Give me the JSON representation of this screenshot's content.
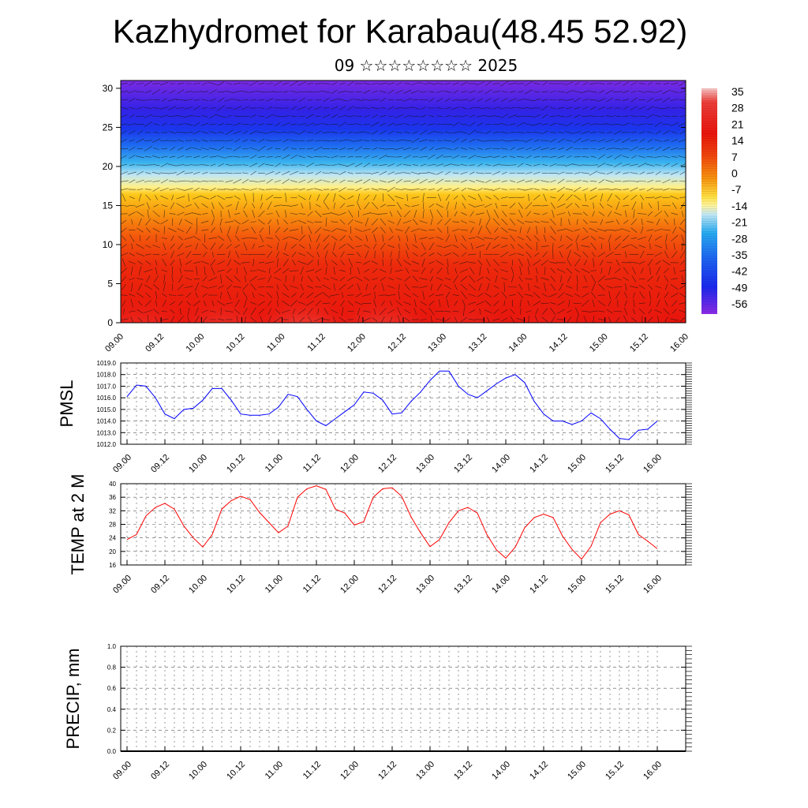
{
  "title": "Kazhydromet for Karabau(48.45 52.92)",
  "subtitle": "09 ☆☆☆☆☆☆☆☆ 2025",
  "colorbar": {
    "labels": [
      "35",
      "28",
      "21",
      "14",
      "7",
      "0",
      "-7",
      "-14",
      "-21",
      "-28",
      "-35",
      "-42",
      "-49",
      "-56"
    ]
  },
  "chart_data": [
    {
      "type": "heatmap",
      "title": "",
      "description_kind": "vertical cross-section temperature with wind vectors",
      "y_ticks": [
        0,
        5,
        10,
        15,
        20,
        25,
        30
      ],
      "ylim": [
        0,
        31
      ],
      "x_ticks": [
        "09.00",
        "09.12",
        "10.00",
        "10.12",
        "11.00",
        "11.12",
        "12.00",
        "12.12",
        "13.00",
        "13.12",
        "14.00",
        "14.12",
        "15.00",
        "15.12",
        "16.00"
      ],
      "colors": {
        "hot_spot": "#f7b0b0",
        "red": "#e8140c",
        "orange": "#f57a0c",
        "yellow": "#ffd21a",
        "light_blue": "#a8dcf2",
        "blue": "#1a55f0",
        "violet": "#7a28e6"
      }
    },
    {
      "type": "line",
      "ylabel": "PMSL",
      "ylim": [
        1012.0,
        1019.0
      ],
      "y_ticks": [
        "1012.0",
        "1013.0",
        "1014.0",
        "1015.0",
        "1016.0",
        "1017.0",
        "1018.0",
        "1019.0"
      ],
      "x_ticks": [
        "09.00",
        "09.12",
        "10.00",
        "10.12",
        "11.00",
        "11.12",
        "12.00",
        "12.12",
        "13.00",
        "13.12",
        "14.00",
        "14.12",
        "15.00",
        "15.12",
        "16.00"
      ],
      "color": "#0000ff",
      "values": [
        1016.1,
        1017.1,
        1017.0,
        1016.0,
        1014.6,
        1014.2,
        1015.0,
        1015.1,
        1015.8,
        1016.8,
        1016.8,
        1015.8,
        1014.6,
        1014.5,
        1014.5,
        1014.6,
        1015.2,
        1016.3,
        1016.1,
        1015.0,
        1014.0,
        1013.6,
        1014.2,
        1014.8,
        1015.4,
        1016.5,
        1016.4,
        1015.8,
        1014.6,
        1014.7,
        1015.7,
        1016.5,
        1017.5,
        1018.3,
        1018.3,
        1017.0,
        1016.3,
        1016.0,
        1016.6,
        1017.2,
        1017.7,
        1018.0,
        1017.3,
        1015.7,
        1014.6,
        1014.0,
        1014.0,
        1013.7,
        1014.0,
        1014.7,
        1014.2,
        1013.3,
        1012.5,
        1012.4,
        1013.2,
        1013.3,
        1014.0
      ]
    },
    {
      "type": "line",
      "ylabel": "TEMP at 2 M",
      "ylim": [
        16,
        40
      ],
      "y_ticks": [
        "16",
        "20",
        "24",
        "28",
        "32",
        "36",
        "40"
      ],
      "x_ticks": [
        "09.00",
        "09.12",
        "10.00",
        "10.12",
        "11.00",
        "11.12",
        "12.00",
        "12.12",
        "13.00",
        "13.12",
        "14.00",
        "14.12",
        "15.00",
        "15.12",
        "16.00"
      ],
      "color": "#ff0000",
      "values": [
        23.5,
        25,
        30.5,
        33,
        34.2,
        32.5,
        27.5,
        24,
        21.3,
        25,
        32.5,
        35,
        36.3,
        35.3,
        31.5,
        28.5,
        25.5,
        27.5,
        36,
        38.5,
        39.4,
        38.3,
        32.5,
        31.3,
        27.8,
        28.8,
        36,
        38.5,
        38.8,
        36.3,
        30.2,
        25.5,
        21.4,
        23.5,
        28.5,
        32,
        33,
        31.3,
        25,
        20.5,
        18,
        21.3,
        27,
        30,
        31,
        30,
        24.5,
        20.6,
        17.7,
        21.5,
        28.5,
        31,
        32,
        30.8,
        25,
        23,
        20.8
      ]
    },
    {
      "type": "bar",
      "ylabel": "PRECIP, mm",
      "ylim": [
        0.0,
        1.0
      ],
      "y_ticks": [
        "0.0",
        "0.2",
        "0.4",
        "0.6",
        "0.8",
        "1.0"
      ],
      "x_ticks": [
        "09.00",
        "09.12",
        "10.00",
        "10.12",
        "11.00",
        "11.12",
        "12.00",
        "12.12",
        "13.00",
        "13.12",
        "14.00",
        "14.12",
        "15.00",
        "15.12",
        "16.00"
      ],
      "values": []
    }
  ]
}
